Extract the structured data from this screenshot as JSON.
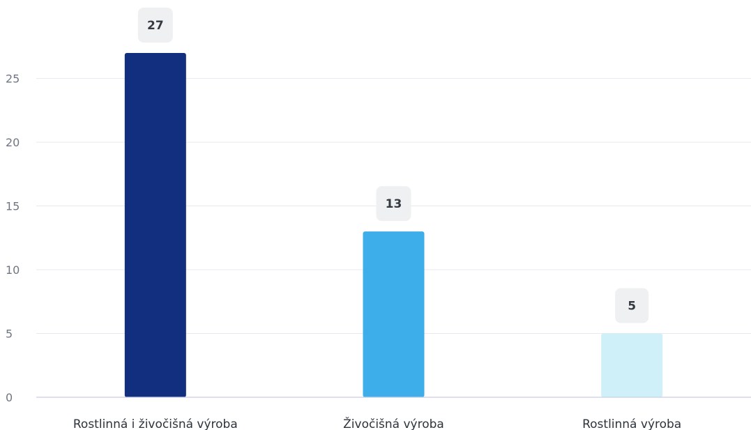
{
  "chart_data": {
    "type": "bar",
    "title": "",
    "xlabel": "",
    "ylabel": "",
    "categories": [
      "Rostlinná i živočišná výroba",
      "Živočišná výroba",
      "Rostlinná výroba"
    ],
    "values": [
      27,
      13,
      5
    ],
    "data_labels": [
      "27",
      "13",
      "5"
    ],
    "colors": [
      "#122f7f",
      "#3daee9",
      "#cff0f8"
    ],
    "ylim": [
      0,
      27
    ],
    "yticks": [
      0,
      5,
      10,
      15,
      20,
      25
    ],
    "grid": true,
    "legend": "none"
  }
}
